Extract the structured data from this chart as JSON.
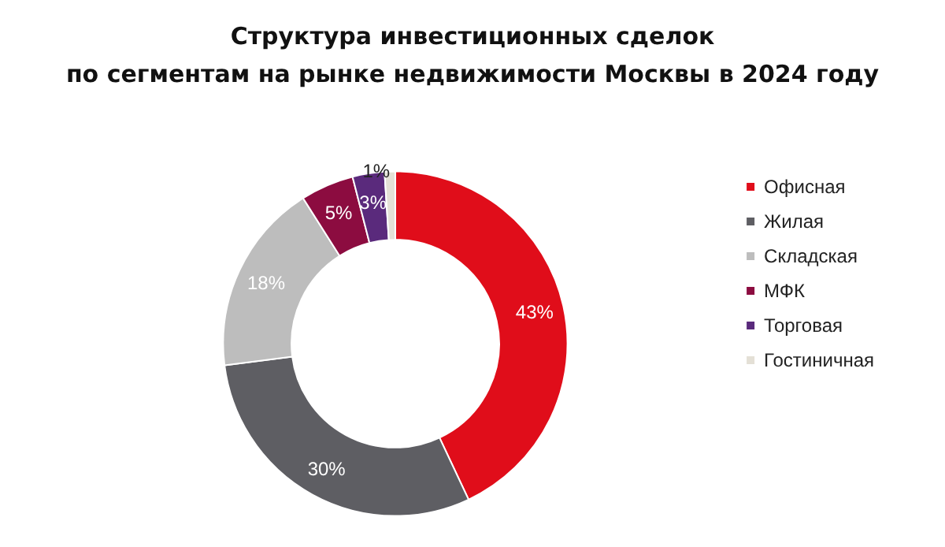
{
  "chart_data": {
    "type": "donut",
    "title": "Структура инвестиционных сделок\nпо сегментам на рынке недвижимости Москвы в 2024 году",
    "categories": [
      "Офисная",
      "Жилая",
      "Складская",
      "МФК",
      "Торговая",
      "Гостиничная"
    ],
    "values": [
      43,
      30,
      18,
      5,
      3,
      1
    ],
    "value_labels": [
      "43%",
      "30%",
      "18%",
      "5%",
      "3%",
      "1%"
    ],
    "colors": [
      "#e00d1a",
      "#5e5e63",
      "#bdbdbd",
      "#8c0c40",
      "#5a2a7c",
      "#e4e0d6"
    ],
    "legend": "right"
  }
}
